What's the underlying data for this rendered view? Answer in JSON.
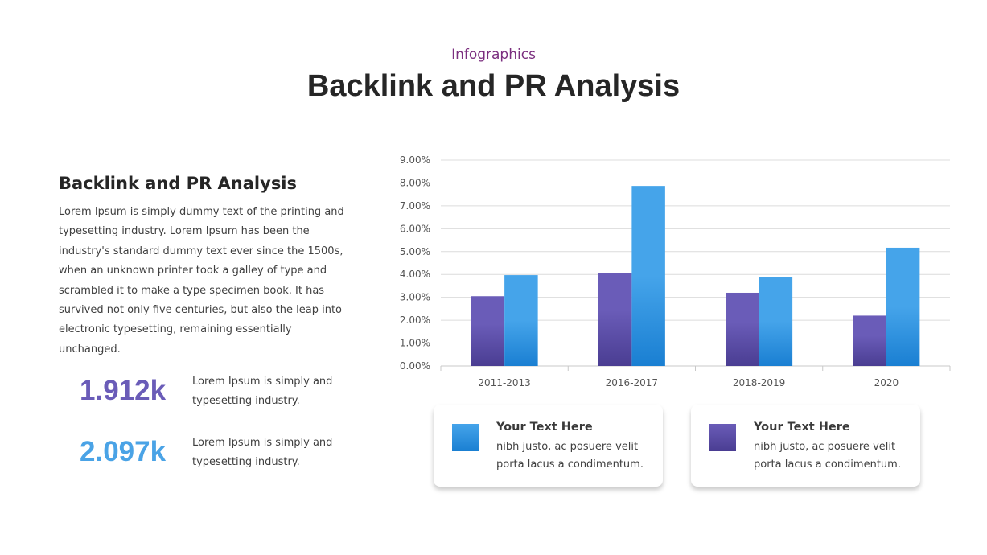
{
  "header": {
    "kicker": "Infographics",
    "title": "Backlink and PR Analysis"
  },
  "left": {
    "heading": "Backlink and PR Analysis",
    "body": "Lorem Ipsum is simply dummy text of the printing and typesetting industry. Lorem Ipsum has been the industry's standard dummy text ever since the 1500s,  when an unknown printer took a galley of type and scrambled it to make a type specimen book. It has survived not only five centuries, but also the leap into electronic typesetting, remaining essentially unchanged.",
    "stats": [
      {
        "value": "1.912k",
        "text": "Lorem Ipsum is simply and typesetting industry.",
        "color": "#6a5cb8"
      },
      {
        "value": "2.097k",
        "text": "Lorem Ipsum is simply and typesetting industry.",
        "color": "#4aa3e6"
      }
    ]
  },
  "legend_cards": [
    {
      "title": "Your Text Here",
      "text": "nibh justo, ac posuere velit porta lacus a condimentum.",
      "color": "#3a9be3"
    },
    {
      "title": "Your Text Here",
      "text": "nibh justo, ac posuere velit porta lacus a condimentum.",
      "color": "#5f52b0"
    }
  ],
  "chart_data": {
    "type": "bar",
    "categories": [
      "2011-2013",
      "2016-2017",
      "2018-2019",
      "2020"
    ],
    "series": [
      {
        "values": [
          3.05,
          4.05,
          3.2,
          2.2
        ],
        "color": "#6a5cb8"
      },
      {
        "values": [
          3.97,
          7.87,
          3.9,
          5.17
        ],
        "color": "#45a4ea"
      }
    ],
    "ylim": [
      0,
      9
    ],
    "yticks": [
      "0.00%",
      "1.00%",
      "2.00%",
      "3.00%",
      "4.00%",
      "5.00%",
      "6.00%",
      "7.00%",
      "8.00%",
      "9.00%"
    ],
    "grid": true
  }
}
